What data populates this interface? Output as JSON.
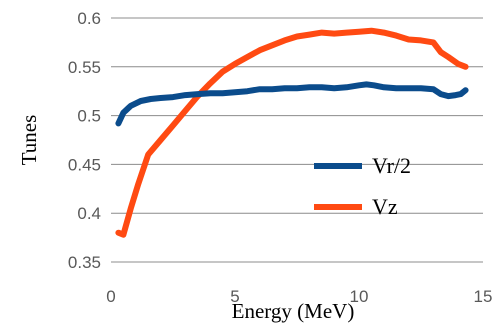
{
  "chart_data": {
    "type": "line",
    "xlabel": "Energy (MeV)",
    "ylabel": "Tunes",
    "xlim": [
      0,
      15
    ],
    "ylim": [
      0.35,
      0.6
    ],
    "x_ticks": [
      "0",
      "5",
      "10",
      "15"
    ],
    "y_ticks": [
      "0.35",
      "0.4",
      "0.45",
      "0.5",
      "0.55",
      "0.6"
    ],
    "grid": "horizontal",
    "legend": "inside-right",
    "series": [
      {
        "name": "Vr/2",
        "color": "#0B4C8C",
        "x": [
          0.3,
          0.5,
          0.8,
          1.2,
          1.6,
          2.0,
          2.5,
          3.0,
          3.5,
          4.0,
          4.5,
          5.0,
          5.5,
          6.0,
          6.5,
          7.0,
          7.5,
          8.0,
          8.5,
          9.0,
          9.5,
          10.0,
          10.3,
          10.6,
          11.0,
          11.5,
          12.0,
          12.5,
          13.0,
          13.3,
          13.6,
          13.9,
          14.1,
          14.3
        ],
        "values": [
          0.492,
          0.503,
          0.51,
          0.515,
          0.517,
          0.518,
          0.519,
          0.521,
          0.522,
          0.523,
          0.523,
          0.524,
          0.525,
          0.527,
          0.527,
          0.528,
          0.528,
          0.529,
          0.529,
          0.528,
          0.529,
          0.531,
          0.532,
          0.531,
          0.529,
          0.528,
          0.528,
          0.528,
          0.527,
          0.522,
          0.52,
          0.521,
          0.522,
          0.526
        ]
      },
      {
        "name": "Vz",
        "color": "#FF4A12",
        "x": [
          0.3,
          0.5,
          0.8,
          1.1,
          1.5,
          2.0,
          2.5,
          3.0,
          3.5,
          4.0,
          4.5,
          5.0,
          5.5,
          6.0,
          6.5,
          7.0,
          7.5,
          8.0,
          8.5,
          9.0,
          9.5,
          10.0,
          10.5,
          11.0,
          11.5,
          12.0,
          12.5,
          13.0,
          13.3,
          13.6,
          14.0,
          14.3
        ],
        "values": [
          0.38,
          0.378,
          0.405,
          0.43,
          0.46,
          0.475,
          0.49,
          0.505,
          0.52,
          0.533,
          0.545,
          0.553,
          0.56,
          0.567,
          0.572,
          0.577,
          0.581,
          0.583,
          0.585,
          0.584,
          0.585,
          0.586,
          0.587,
          0.585,
          0.582,
          0.578,
          0.577,
          0.575,
          0.565,
          0.56,
          0.553,
          0.55
        ]
      }
    ]
  }
}
